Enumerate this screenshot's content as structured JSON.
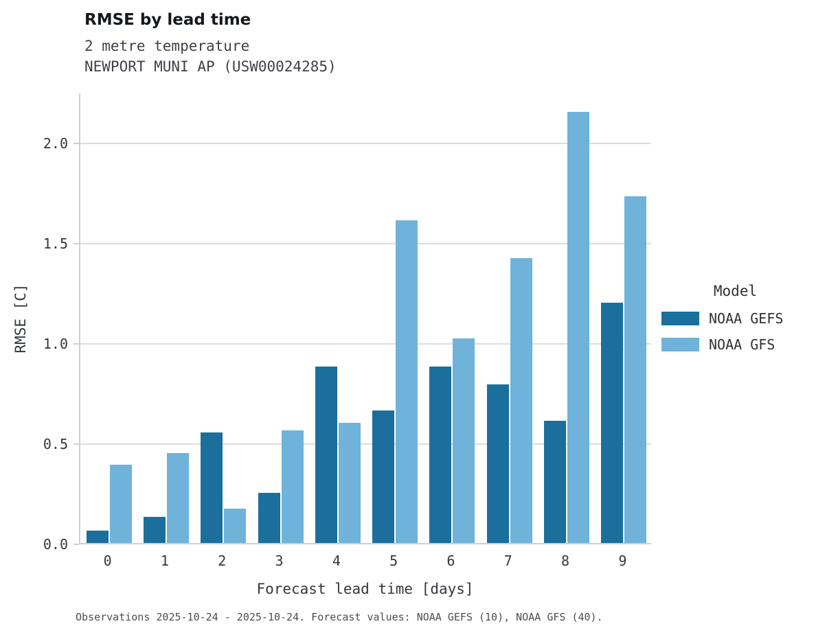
{
  "title": "RMSE by lead time",
  "subtitle_variable": "2 metre temperature",
  "subtitle_station": "NEWPORT MUNI AP (USW00024285)",
  "footer": "Observations 2025-10-24 - 2025-10-24. Forecast values: NOAA GEFS (10), NOAA GFS (40).",
  "legend": {
    "title": "Model"
  },
  "colors": {
    "background": "#ffffff",
    "gridline": "#dcdcdc",
    "axis_text": "#33373d"
  },
  "chart_data": {
    "type": "bar",
    "title": "RMSE by lead time",
    "subtitle": "2 metre temperature — NEWPORT MUNI AP (USW00024285)",
    "xlabel": "Forecast lead time [days]",
    "ylabel": "RMSE [C]",
    "categories": [
      0,
      1,
      2,
      3,
      4,
      5,
      6,
      7,
      8,
      9
    ],
    "series": [
      {
        "name": "NOAA GEFS",
        "color": "#1a6f9c",
        "values": [
          0.06,
          0.13,
          0.55,
          0.25,
          0.88,
          0.66,
          0.88,
          0.79,
          0.61,
          1.2
        ]
      },
      {
        "name": "NOAA GFS",
        "color": "#6fb3da",
        "values": [
          0.39,
          0.45,
          0.17,
          0.56,
          0.6,
          1.61,
          1.02,
          1.42,
          2.15,
          1.73
        ]
      }
    ],
    "yticks": [
      0.0,
      0.5,
      1.0,
      1.5,
      2.0
    ],
    "ylim": [
      0,
      2.25
    ],
    "grid": true,
    "legend_title": "Model",
    "legend_position": "right"
  }
}
